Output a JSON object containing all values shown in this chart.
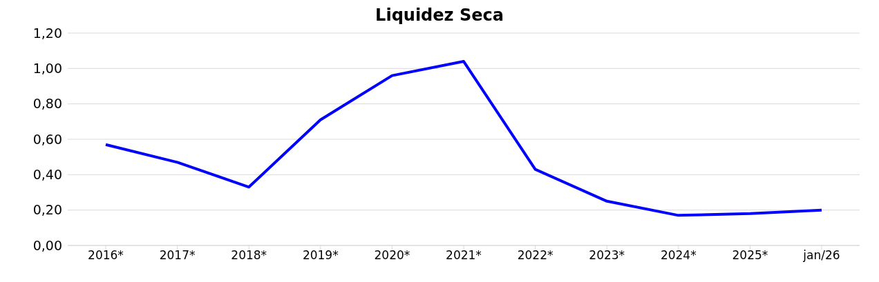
{
  "chart_data": {
    "type": "line",
    "title": "Liquidez Seca",
    "categories": [
      "2016*",
      "2017*",
      "2018*",
      "2019*",
      "2020*",
      "2021*",
      "2022*",
      "2023*",
      "2024*",
      "2025*",
      "jan/26"
    ],
    "series": [
      {
        "color": "#0000ff",
        "values": [
          0.57,
          0.47,
          0.33,
          0.71,
          0.96,
          1.04,
          0.43,
          0.25,
          0.17,
          0.18,
          0.2
        ]
      }
    ],
    "ylim": [
      0,
      1.2
    ],
    "yticks": [
      {
        "value": 0,
        "label": "0,00"
      },
      {
        "value": 0.2,
        "label": "0,20"
      },
      {
        "value": 0.4,
        "label": "0,40"
      },
      {
        "value": 0.6,
        "label": "0,60"
      },
      {
        "value": 0.8,
        "label": "0,80"
      },
      {
        "value": 1,
        "label": "1,00"
      },
      {
        "value": 1.2,
        "label": "1,20"
      }
    ],
    "grid": "y",
    "marker": "none",
    "line_style": "solid"
  }
}
